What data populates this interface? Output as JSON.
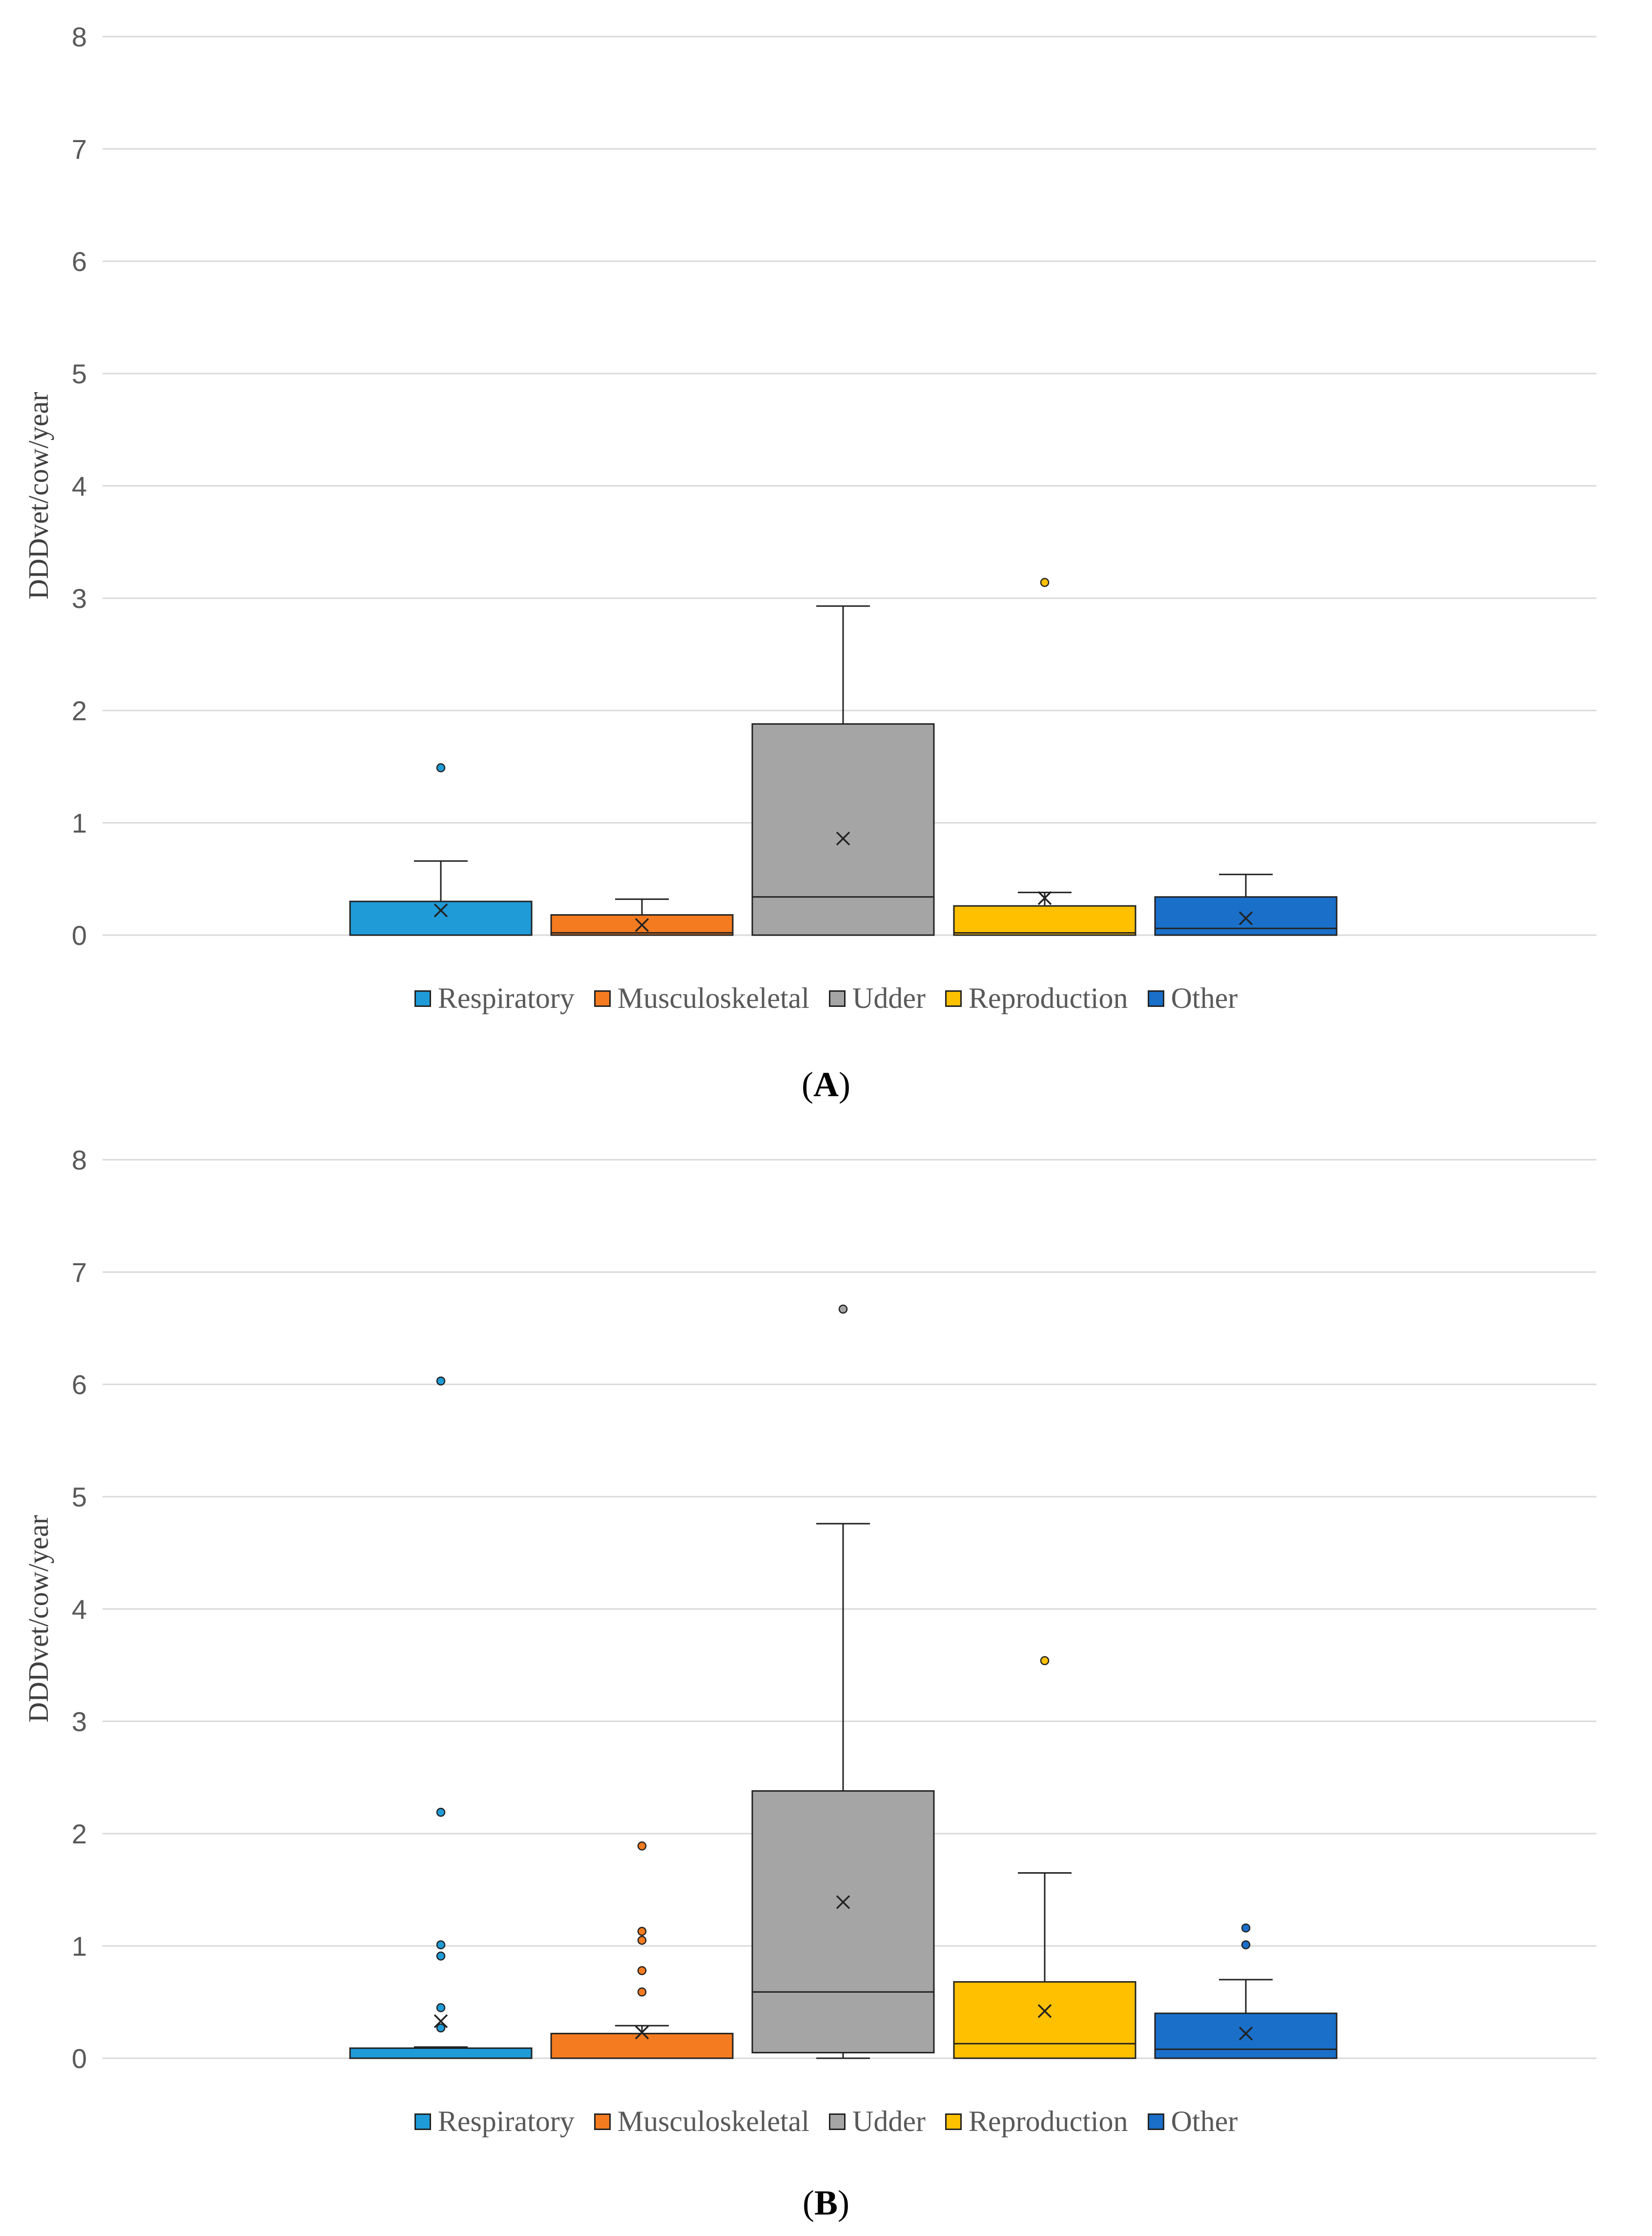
{
  "chart_data": [
    {
      "panel": "A",
      "type": "box",
      "title": "",
      "ylabel": "DDDvet/cow/year",
      "xlabel": "",
      "ylim": [
        0,
        8
      ],
      "yticks": [
        "0",
        "1",
        "2",
        "3",
        "4",
        "5",
        "6",
        "7",
        "8"
      ],
      "grid": true,
      "legend_position": "bottom",
      "caption_open": "(",
      "caption_letter": "A",
      "caption_close": ")",
      "series": [
        {
          "name": "Respiratory",
          "color": "#1f9bd8",
          "min": 0,
          "q1": 0,
          "median": 0,
          "q3": 0.3,
          "max": 0.66,
          "mean": 0.22,
          "outliers": [
            1.49
          ]
        },
        {
          "name": "Musculoskeletal",
          "color": "#f47b20",
          "min": 0,
          "q1": 0,
          "median": 0.02,
          "q3": 0.18,
          "max": 0.32,
          "mean": 0.09,
          "outliers": []
        },
        {
          "name": "Udder",
          "color": "#a5a5a5",
          "min": 0,
          "q1": 0,
          "median": 0.34,
          "q3": 1.88,
          "max": 2.93,
          "mean": 0.86,
          "outliers": []
        },
        {
          "name": "Reproduction",
          "color": "#ffc000",
          "min": 0,
          "q1": 0,
          "median": 0.02,
          "q3": 0.26,
          "max": 0.38,
          "mean": 0.33,
          "outliers": [
            3.14
          ]
        },
        {
          "name": "Other",
          "color": "#1a6fc9",
          "min": 0,
          "q1": 0,
          "median": 0.06,
          "q3": 0.34,
          "max": 0.54,
          "mean": 0.15,
          "outliers": []
        }
      ]
    },
    {
      "panel": "B",
      "type": "box",
      "title": "",
      "ylabel": "DDDvet/cow/year",
      "xlabel": "",
      "ylim": [
        0,
        8
      ],
      "yticks": [
        "0",
        "1",
        "2",
        "3",
        "4",
        "5",
        "6",
        "7",
        "8"
      ],
      "grid": true,
      "legend_position": "bottom",
      "caption_open": "(",
      "caption_letter": "B",
      "caption_close": ")",
      "series": [
        {
          "name": "Respiratory",
          "color": "#1f9bd8",
          "min": 0,
          "q1": 0,
          "median": 0,
          "q3": 0.09,
          "max": 0.1,
          "mean": 0.33,
          "outliers": [
            6.03,
            2.19,
            1.01,
            0.91,
            0.45,
            0.27
          ]
        },
        {
          "name": "Musculoskeletal",
          "color": "#f47b20",
          "min": 0,
          "q1": 0,
          "median": 0,
          "q3": 0.22,
          "max": 0.29,
          "mean": 0.23,
          "outliers": [
            1.89,
            1.13,
            1.05,
            0.78,
            0.59
          ]
        },
        {
          "name": "Udder",
          "color": "#a5a5a5",
          "min": 0,
          "q1": 0.05,
          "median": 0.59,
          "q3": 2.38,
          "max": 4.76,
          "mean": 1.39,
          "outliers": [
            6.67
          ]
        },
        {
          "name": "Reproduction",
          "color": "#ffc000",
          "min": 0,
          "q1": 0,
          "median": 0.13,
          "q3": 0.68,
          "max": 1.65,
          "mean": 0.42,
          "outliers": [
            3.54
          ]
        },
        {
          "name": "Other",
          "color": "#1a6fc9",
          "min": 0,
          "q1": 0,
          "median": 0.08,
          "q3": 0.4,
          "max": 0.7,
          "mean": 0.22,
          "outliers": [
            1.16,
            1.01
          ]
        }
      ]
    }
  ]
}
